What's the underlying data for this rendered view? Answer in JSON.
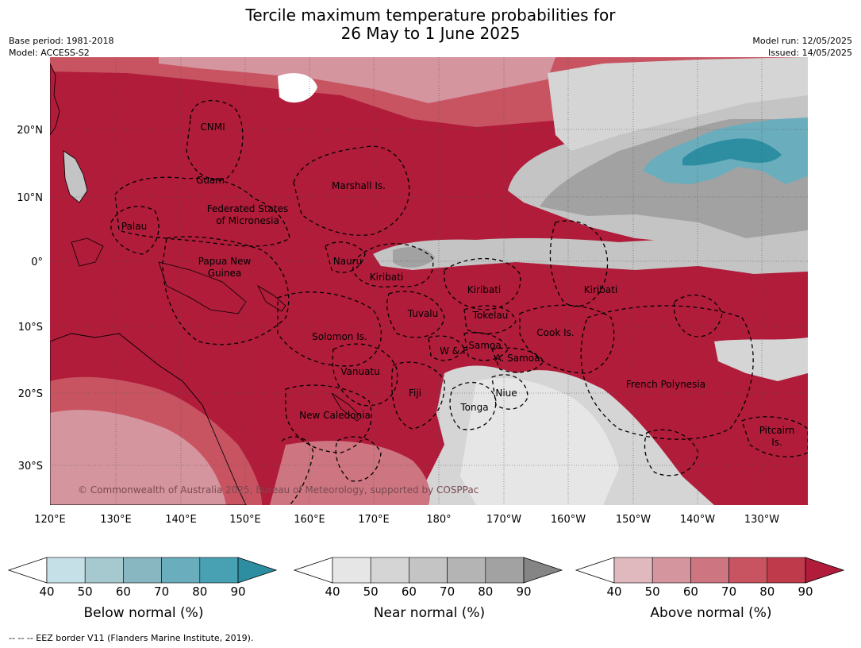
{
  "title_line1": "Tercile maximum temperature probabilities for",
  "title_line2": "26 May to 1 June 2025",
  "base_period": "Base period: 1981-2018",
  "model": "Model: ACCESS-S2",
  "model_run": "Model run: 12/05/2025",
  "issued": "Issued: 14/05/2025",
  "lat_labels": [
    "20°N",
    "10°N",
    "0°",
    "10°S",
    "20°S",
    "30°S"
  ],
  "lon_labels": [
    "120°E",
    "130°E",
    "140°E",
    "150°E",
    "160°E",
    "170°E",
    "180°",
    "170°W",
    "160°W",
    "150°W",
    "140°W",
    "130°W"
  ],
  "copyright": "© Commonwealth of Australia 2025, Bureau of Meteorology, supported by COSPPac",
  "region_labels": [
    {
      "text": "CNMI"
    },
    {
      "text": "Guam"
    },
    {
      "text": "Marshall Is."
    },
    {
      "text": "Federated States"
    },
    {
      "text": "of Micronesia"
    },
    {
      "text": "Palau"
    },
    {
      "text": "Papua New"
    },
    {
      "text": "Guinea"
    },
    {
      "text": "Nauru"
    },
    {
      "text": "Kiribati"
    },
    {
      "text": "Kiribati"
    },
    {
      "text": "Kiribati"
    },
    {
      "text": "Tuvalu"
    },
    {
      "text": "Tokelau"
    },
    {
      "text": "Cook Is."
    },
    {
      "text": "Solomon Is."
    },
    {
      "text": "W & F"
    },
    {
      "text": "Samoa"
    },
    {
      "text": "A. Samoa"
    },
    {
      "text": "Vanuatu"
    },
    {
      "text": "Fiji"
    },
    {
      "text": "Niue"
    },
    {
      "text": "Tonga"
    },
    {
      "text": "French Polynesia"
    },
    {
      "text": "New Caledonia"
    },
    {
      "text": "Pitcairn"
    },
    {
      "text": "Is."
    }
  ],
  "legends": [
    {
      "label": "Below normal (%)",
      "ticks": [
        "40",
        "50",
        "60",
        "70",
        "80",
        "90"
      ],
      "colors": [
        "#ffffff",
        "#c6e0e7",
        "#a6c9d0",
        "#88b6c1",
        "#6aadbd",
        "#47a1b2",
        "#2d8ea1"
      ]
    },
    {
      "label": "Near normal (%)",
      "ticks": [
        "40",
        "50",
        "60",
        "70",
        "80",
        "90"
      ],
      "colors": [
        "#ffffff",
        "#e6e6e6",
        "#d5d5d5",
        "#c4c4c4",
        "#b4b4b4",
        "#a2a2a2",
        "#858585"
      ]
    },
    {
      "label": "Above normal (%)",
      "ticks": [
        "40",
        "50",
        "60",
        "70",
        "80",
        "90"
      ],
      "colors": [
        "#ffffff",
        "#e0b9bf",
        "#d5959e",
        "#cd7580",
        "#c85462",
        "#bf3a4b",
        "#b01c3a"
      ]
    }
  ],
  "footnote": "--  --  -- EEZ border V11 (Flanders Marine Institute, 2019)."
}
